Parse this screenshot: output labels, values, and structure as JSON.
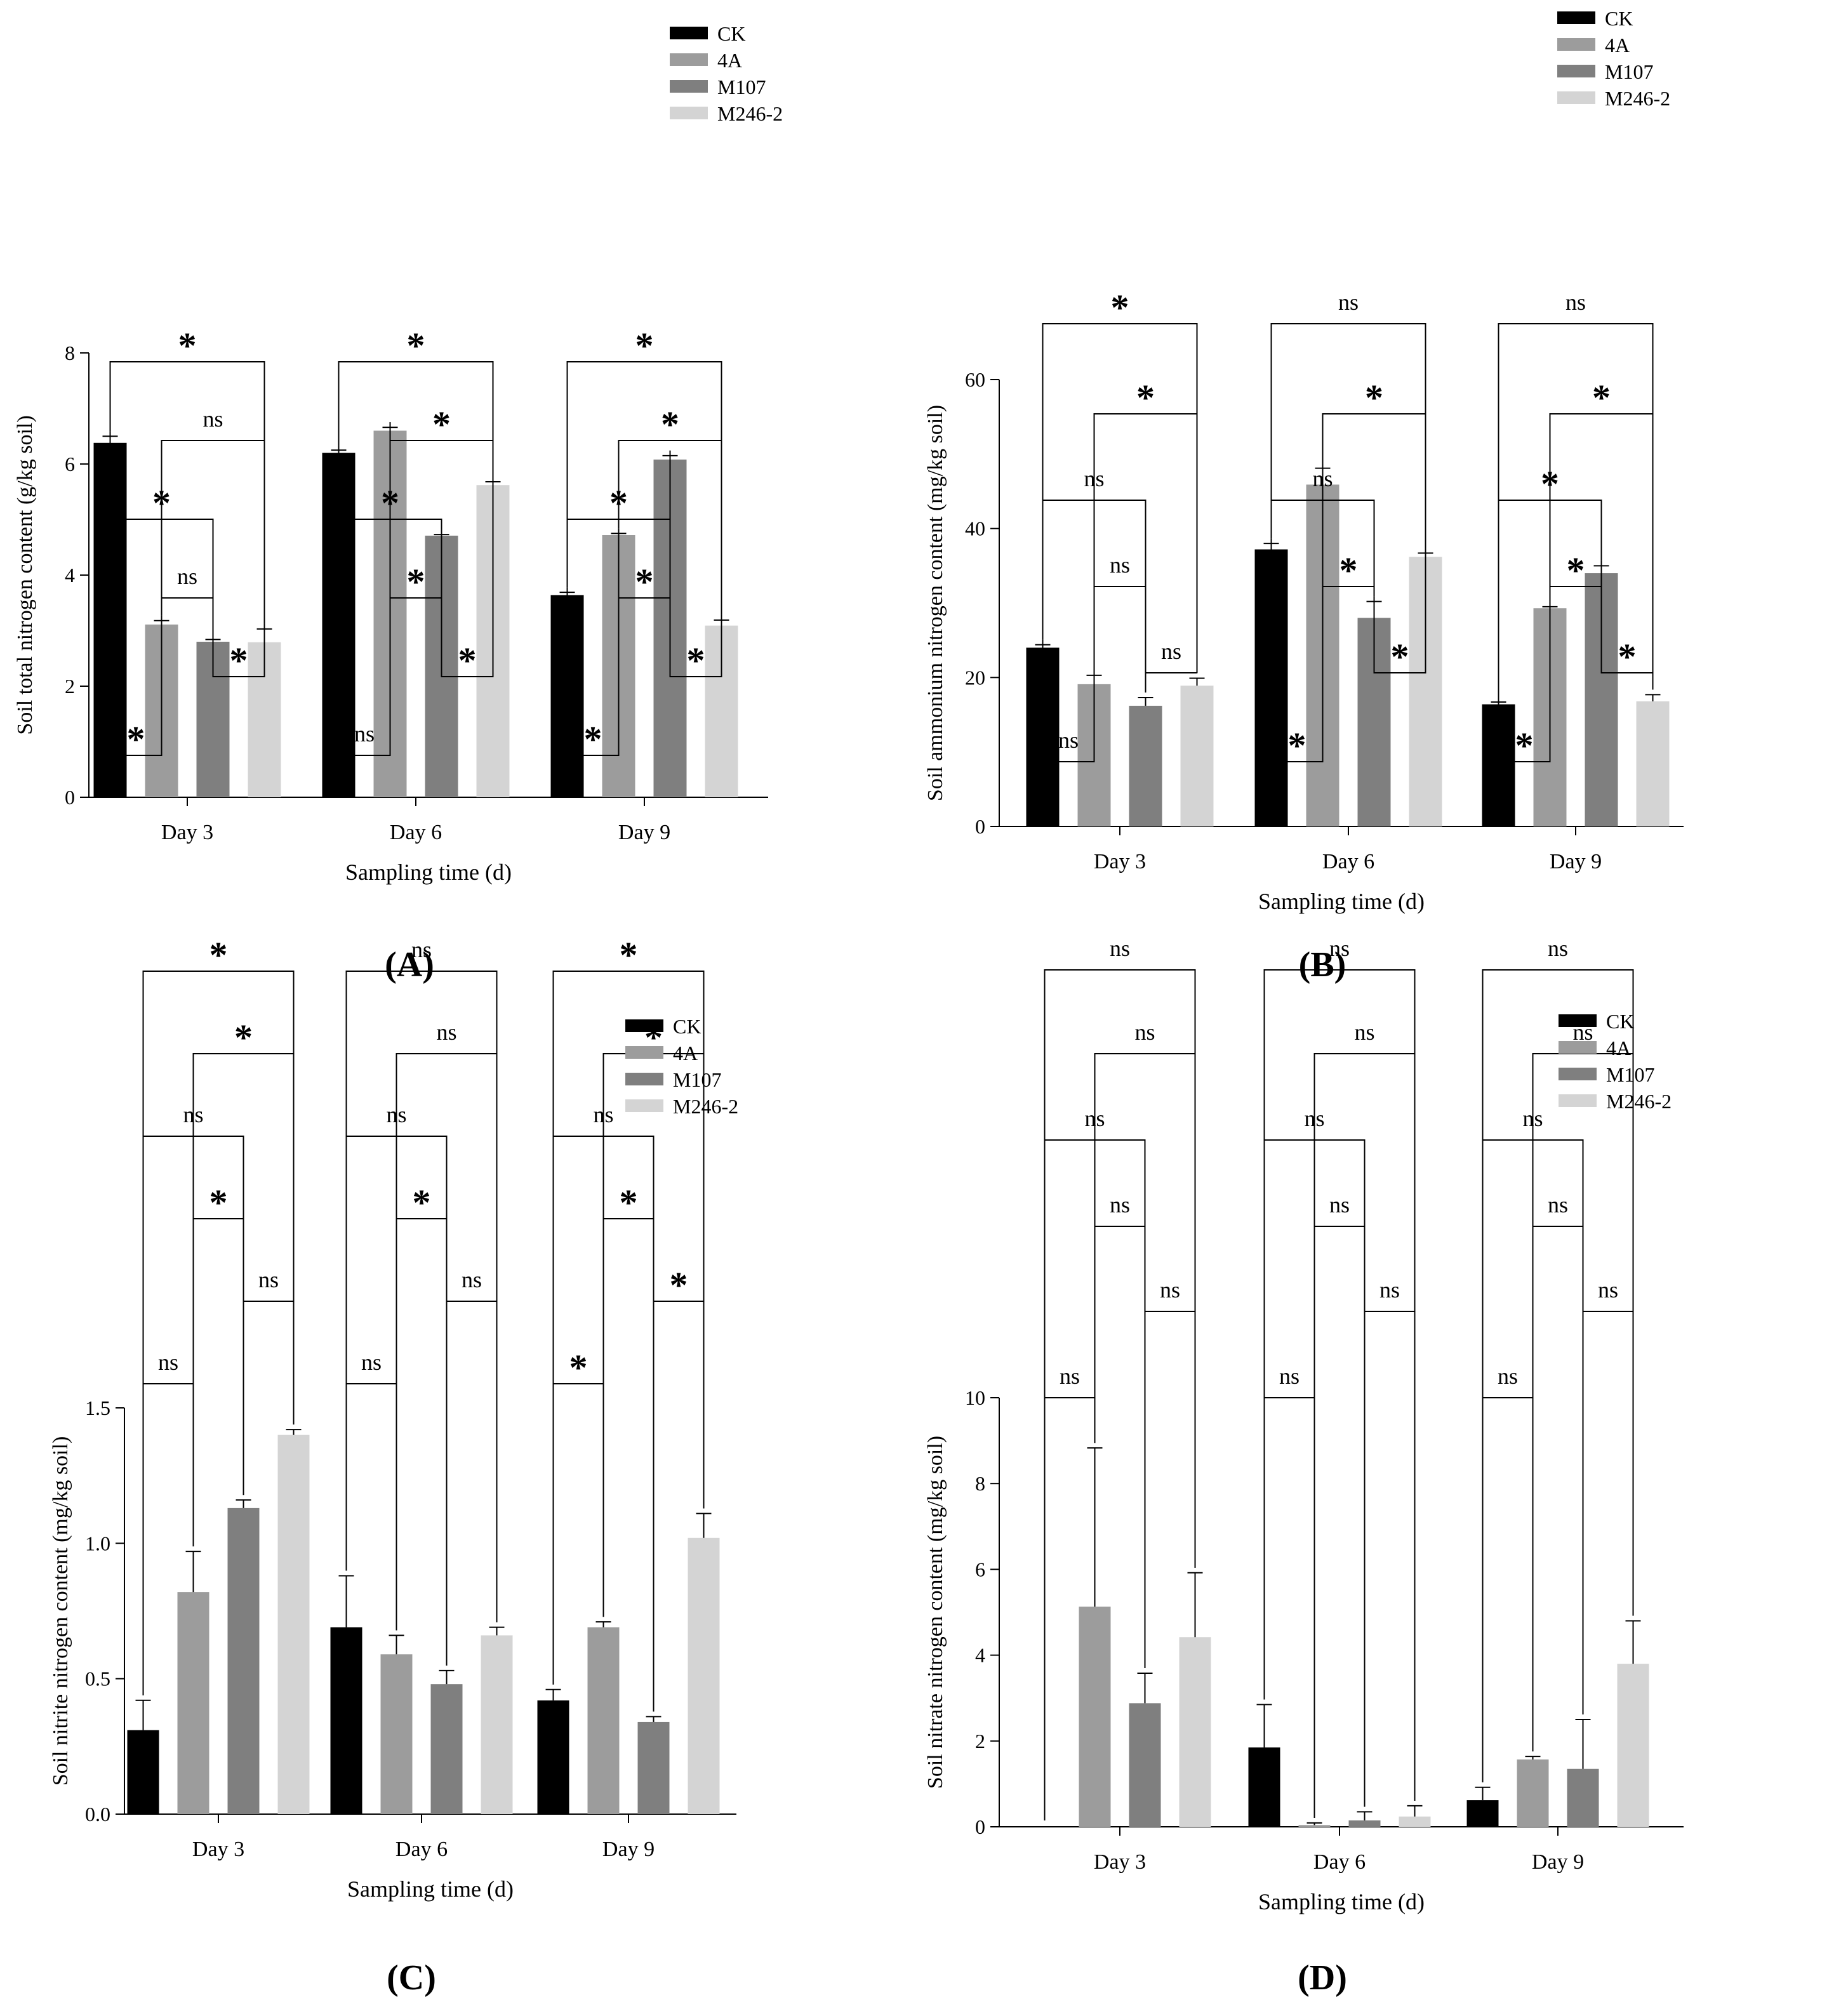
{
  "colors": {
    "CK": "#000000",
    "4A": "#9c9c9c",
    "M107": "#7f7f7f",
    "M246-2": "#d4d4d4"
  },
  "legend_labels": [
    "CK",
    "4A",
    "M107",
    "M246-2"
  ],
  "chart_data": [
    {
      "panel": "A",
      "type": "bar",
      "title": "",
      "categories": [
        "Day 3",
        "Day 6",
        "Day 9"
      ],
      "series": [
        {
          "name": "CK",
          "values": [
            6.38,
            6.2,
            3.64
          ],
          "errors": [
            0.12,
            0.05,
            0.05
          ]
        },
        {
          "name": "4A",
          "values": [
            3.11,
            6.6,
            4.72
          ],
          "errors": [
            0.07,
            0.06,
            0.03
          ]
        },
        {
          "name": "M107",
          "values": [
            2.8,
            4.71,
            6.08
          ],
          "errors": [
            0.04,
            0.02,
            0.07
          ]
        },
        {
          "name": "M246-2",
          "values": [
            2.79,
            5.62,
            3.09
          ],
          "errors": [
            0.24,
            0.06,
            0.1
          ]
        }
      ],
      "xlabel": "Sampling time (d)",
      "ylabel": "Soil total nitrogen content (g/kg soil)",
      "ylim": [
        0,
        8
      ],
      "yticks": [
        0,
        2,
        4,
        6,
        8
      ],
      "grid": false,
      "legend": "top-right",
      "significance": [
        [
          "*",
          "*",
          "ns",
          "*",
          "ns",
          "*"
        ],
        [
          "ns",
          "*",
          "*",
          "*",
          "*",
          "*"
        ],
        [
          "*",
          "*",
          "*",
          "*",
          "*",
          "*"
        ]
      ]
    },
    {
      "panel": "B",
      "type": "bar",
      "title": "",
      "categories": [
        "Day 3",
        "Day 6",
        "Day 9"
      ],
      "series": [
        {
          "name": "CK",
          "values": [
            24,
            37.2,
            16.4
          ],
          "errors": [
            0.4,
            0.8,
            0.3
          ]
        },
        {
          "name": "4A",
          "values": [
            19.1,
            45.9,
            29.3
          ],
          "errors": [
            1.2,
            2.2,
            0.2
          ]
        },
        {
          "name": "M107",
          "values": [
            16.2,
            28,
            34
          ],
          "errors": [
            1.1,
            2.2,
            1
          ]
        },
        {
          "name": "M246-2",
          "values": [
            18.9,
            36.2,
            16.8
          ],
          "errors": [
            1,
            0.5,
            0.9
          ]
        }
      ],
      "xlabel": "Sampling time (d)",
      "ylabel": "Soil ammonium nitrogen content (mg/kg soil)",
      "ylim": [
        0,
        60
      ],
      "yticks": [
        0,
        20,
        40,
        60
      ],
      "grid": false,
      "legend": "top-right",
      "significance": [
        [
          "ns",
          "ns",
          "ns",
          "ns",
          "*",
          "*"
        ],
        [
          "*",
          "*",
          "*",
          "ns",
          "*",
          "ns"
        ],
        [
          "*",
          "*",
          "*",
          "*",
          "*",
          "ns"
        ]
      ]
    },
    {
      "panel": "C",
      "type": "bar",
      "title": "",
      "categories": [
        "Day 3",
        "Day 6",
        "Day 9"
      ],
      "series": [
        {
          "name": "CK",
          "values": [
            0.31,
            0.69,
            0.42
          ],
          "errors": [
            0.11,
            0.19,
            0.04
          ]
        },
        {
          "name": "4A",
          "values": [
            0.82,
            0.59,
            0.69
          ],
          "errors": [
            0.15,
            0.07,
            0.02
          ]
        },
        {
          "name": "M107",
          "values": [
            1.13,
            0.48,
            0.34
          ],
          "errors": [
            0.03,
            0.05,
            0.02
          ]
        },
        {
          "name": "M246-2",
          "values": [
            1.4,
            0.66,
            1.02
          ],
          "errors": [
            0.02,
            0.03,
            0.09
          ]
        }
      ],
      "xlabel": "Sampling time (d)",
      "ylabel": "Soil nitrite nitrogen content (mg/kg soil)",
      "ylim": [
        0,
        1.5
      ],
      "yticks": [
        "0.0",
        "0.5",
        "1.0",
        "1.5"
      ],
      "grid": false,
      "legend": "top-right",
      "significance": [
        [
          "ns",
          "ns",
          "*",
          "ns",
          "*",
          "*"
        ],
        [
          "ns",
          "ns",
          "*",
          "ns",
          "ns",
          "ns"
        ],
        [
          "*",
          "*",
          "*",
          "ns",
          "*",
          "*"
        ]
      ]
    },
    {
      "panel": "D",
      "type": "bar",
      "title": "",
      "categories": [
        "Day 3",
        "Day 6",
        "Day 9"
      ],
      "series": [
        {
          "name": "CK",
          "values": [
            0,
            1.85,
            0.62
          ],
          "errors": [
            0,
            1,
            0.3
          ]
        },
        {
          "name": "4A",
          "values": [
            5.13,
            0.04,
            1.57
          ],
          "errors": [
            3.7,
            0.05,
            0.07
          ]
        },
        {
          "name": "M107",
          "values": [
            2.88,
            0.15,
            1.35
          ],
          "errors": [
            0.7,
            0.2,
            1.15
          ]
        },
        {
          "name": "M246-2",
          "values": [
            4.42,
            0.24,
            3.8
          ],
          "errors": [
            1.5,
            0.25,
            1
          ]
        }
      ],
      "xlabel": "Sampling time (d)",
      "ylabel": "Soil nitrate nitrogen content (mg/kg soil)",
      "ylim": [
        0,
        10
      ],
      "yticks": [
        0,
        2,
        4,
        6,
        8,
        10
      ],
      "grid": false,
      "legend": "top-right",
      "significance": [
        [
          "ns",
          "ns",
          "ns",
          "ns",
          "ns",
          "ns"
        ],
        [
          "ns",
          "ns",
          "ns",
          "ns",
          "ns",
          "ns"
        ],
        [
          "ns",
          "ns",
          "ns",
          "ns",
          "ns",
          "ns"
        ]
      ]
    }
  ]
}
